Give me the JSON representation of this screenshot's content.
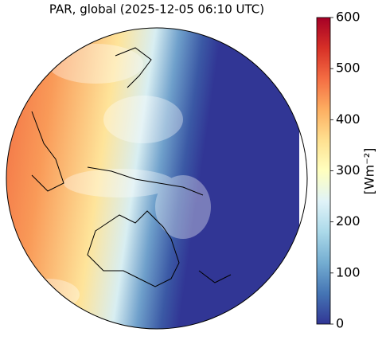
{
  "title": "PAR, global (2025-12-05 06:10 UTC)",
  "colorbar": {
    "label": "[Wm⁻²]",
    "lim": [
      0,
      600
    ],
    "ticks": [
      0,
      100,
      200,
      300,
      400,
      500,
      600
    ]
  }
}
